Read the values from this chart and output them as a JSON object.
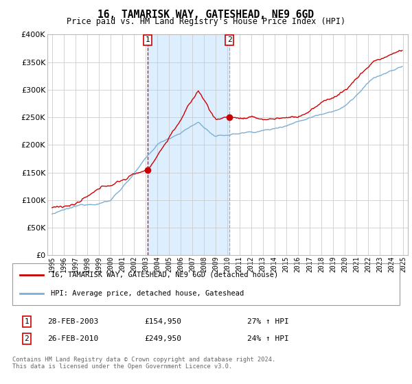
{
  "title": "16, TAMARISK WAY, GATESHEAD, NE9 6GD",
  "subtitle": "Price paid vs. HM Land Registry's House Price Index (HPI)",
  "legend_line1": "16, TAMARISK WAY, GATESHEAD, NE9 6GD (detached house)",
  "legend_line2": "HPI: Average price, detached house, Gateshead",
  "transaction1_date": "28-FEB-2003",
  "transaction1_price": "£154,950",
  "transaction1_hpi": "27% ↑ HPI",
  "transaction2_date": "26-FEB-2010",
  "transaction2_price": "£249,950",
  "transaction2_hpi": "24% ↑ HPI",
  "footer": "Contains HM Land Registry data © Crown copyright and database right 2024.\nThis data is licensed under the Open Government Licence v3.0.",
  "ylim": [
    0,
    400000
  ],
  "yticks": [
    0,
    50000,
    100000,
    150000,
    200000,
    250000,
    300000,
    350000,
    400000
  ],
  "red_color": "#cc0000",
  "blue_color": "#7bafd4",
  "shade_color": "#ddeeff",
  "marker1_x": 2003.167,
  "marker1_y": 154950,
  "marker2_x": 2010.167,
  "marker2_y": 249950,
  "xmin": 1995,
  "xmax": 2025
}
